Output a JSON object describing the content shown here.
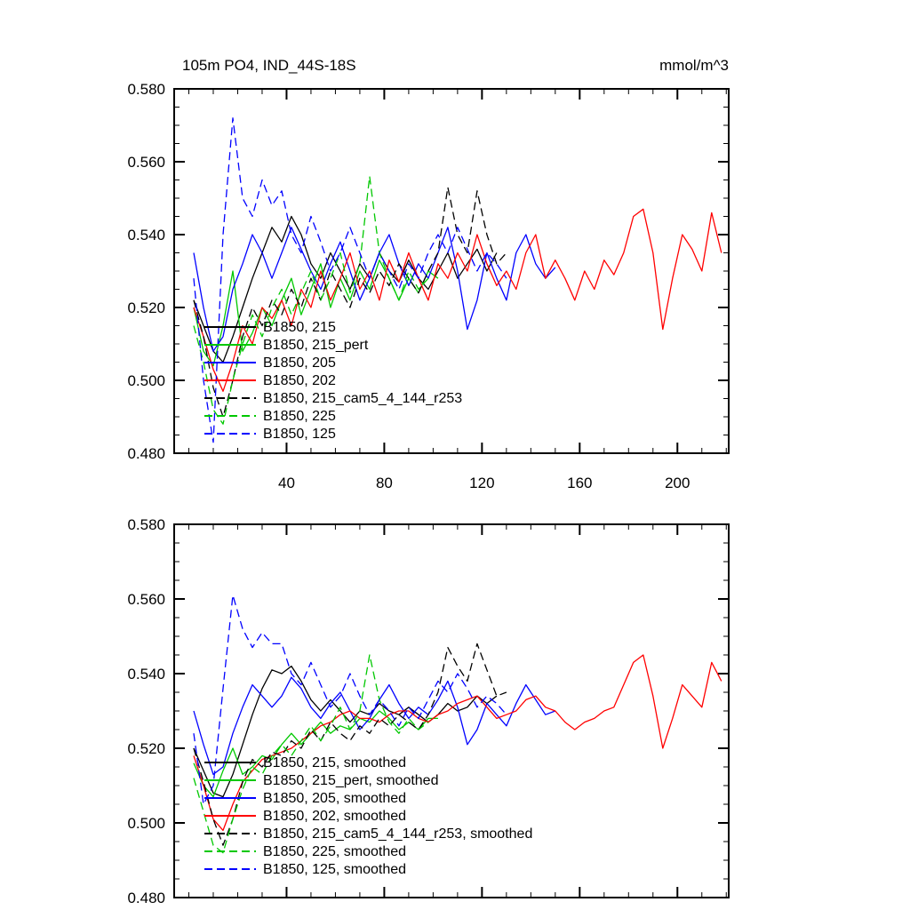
{
  "colors": {
    "background": "#ffffff",
    "axis": "#000000"
  },
  "chart_data": [
    {
      "type": "line",
      "title": "105m PO4, IND_44S-18S",
      "units_label": "mmol/m^3",
      "xlabel": "",
      "ylabel": "",
      "xlim": [
        -6,
        221
      ],
      "ylim": [
        0.48,
        0.58
      ],
      "xticks_major": [
        40,
        80,
        120,
        160,
        200
      ],
      "xtick_major_step": 40,
      "xtick_minor_step": 10,
      "yticks_major": [
        0.48,
        0.5,
        0.52,
        0.54,
        0.56,
        0.58
      ],
      "ytick_major_step": 0.02,
      "ytick_minor_step": 0.005,
      "show_x_tick_labels": true,
      "grid": false,
      "legend_position": "inside-lower-left",
      "series": [
        {
          "name": "B1850, 215",
          "color": "#000000",
          "dash": false,
          "x0": 2,
          "dx": 4,
          "values": [
            0.522,
            0.515,
            0.508,
            0.505,
            0.512,
            0.52,
            0.528,
            0.535,
            0.542,
            0.538,
            0.545,
            0.54,
            0.532,
            0.528,
            0.535,
            0.53,
            0.525,
            0.532,
            0.528,
            0.535,
            0.53,
            0.527,
            0.533,
            0.528,
            0.525,
            0.53,
            0.535,
            0.528,
            0.532,
            0.536,
            0.53,
            0.535
          ]
        },
        {
          "name": "B1850, 215_pert",
          "color": "#00c800",
          "dash": false,
          "x0": 2,
          "dx": 4,
          "values": [
            0.52,
            0.508,
            0.504,
            0.515,
            0.53,
            0.508,
            0.513,
            0.52,
            0.515,
            0.522,
            0.528,
            0.518,
            0.525,
            0.532,
            0.52,
            0.528,
            0.522,
            0.53,
            0.525,
            0.533,
            0.528,
            0.522,
            0.528,
            0.524,
            0.53,
            0.528
          ]
        },
        {
          "name": "B1850, 205",
          "color": "#0000ff",
          "dash": false,
          "x0": 2,
          "dx": 4,
          "values": [
            0.535,
            0.52,
            0.508,
            0.512,
            0.525,
            0.532,
            0.54,
            0.535,
            0.528,
            0.535,
            0.542,
            0.536,
            0.53,
            0.525,
            0.532,
            0.538,
            0.53,
            0.522,
            0.528,
            0.535,
            0.54,
            0.532,
            0.526,
            0.532,
            0.528,
            0.535,
            0.542,
            0.53,
            0.514,
            0.522,
            0.535,
            0.528,
            0.522,
            0.535,
            0.54,
            0.532,
            0.528,
            0.531
          ]
        },
        {
          "name": "B1850, 202",
          "color": "#ff0000",
          "dash": false,
          "x0": 2,
          "dx": 4,
          "values": [
            0.52,
            0.512,
            0.503,
            0.497,
            0.505,
            0.515,
            0.51,
            0.52,
            0.517,
            0.522,
            0.515,
            0.525,
            0.52,
            0.53,
            0.522,
            0.528,
            0.535,
            0.525,
            0.53,
            0.522,
            0.533,
            0.527,
            0.535,
            0.528,
            0.522,
            0.532,
            0.528,
            0.535,
            0.53,
            0.54,
            0.532,
            0.526,
            0.53,
            0.525,
            0.535,
            0.54,
            0.528,
            0.533,
            0.528,
            0.522,
            0.53,
            0.525,
            0.533,
            0.529,
            0.535,
            0.545,
            0.547,
            0.535,
            0.514,
            0.528,
            0.54,
            0.536,
            0.53,
            0.546,
            0.535
          ]
        },
        {
          "name": "B1850, 215_cam5_4_144_r253",
          "color": "#000000",
          "dash": true,
          "x0": 2,
          "dx": 4,
          "values": [
            0.522,
            0.512,
            0.498,
            0.49,
            0.5,
            0.512,
            0.52,
            0.515,
            0.522,
            0.518,
            0.525,
            0.52,
            0.528,
            0.522,
            0.53,
            0.525,
            0.52,
            0.528,
            0.524,
            0.53,
            0.526,
            0.532,
            0.528,
            0.524,
            0.53,
            0.535,
            0.553,
            0.54,
            0.535,
            0.552,
            0.54,
            0.532,
            0.535
          ]
        },
        {
          "name": "B1850, 225",
          "color": "#00c800",
          "dash": true,
          "x0": 2,
          "dx": 4,
          "values": [
            0.515,
            0.505,
            0.492,
            0.488,
            0.5,
            0.51,
            0.518,
            0.512,
            0.52,
            0.525,
            0.518,
            0.524,
            0.53,
            0.522,
            0.528,
            0.535,
            0.524,
            0.532,
            0.556,
            0.535,
            0.528,
            0.522,
            0.53,
            0.525,
            0.528
          ]
        },
        {
          "name": "B1850, 125",
          "color": "#0000ff",
          "dash": true,
          "x0": 2,
          "dx": 4,
          "values": [
            0.528,
            0.5,
            0.483,
            0.54,
            0.572,
            0.55,
            0.545,
            0.555,
            0.548,
            0.552,
            0.54,
            0.535,
            0.545,
            0.538,
            0.53,
            0.535,
            0.542,
            0.535,
            0.528,
            0.535,
            0.53,
            0.525,
            0.532,
            0.528,
            0.535,
            0.54,
            0.535,
            0.542,
            0.536,
            0.53,
            0.535,
            0.532,
            0.528
          ]
        }
      ]
    },
    {
      "type": "line",
      "title": "",
      "units_label": "",
      "xlabel": "",
      "ylabel": "",
      "xlim": [
        -6,
        221
      ],
      "ylim": [
        0.48,
        0.58
      ],
      "xticks_major": [
        40,
        80,
        120,
        160,
        200
      ],
      "xtick_major_step": 40,
      "xtick_minor_step": 10,
      "yticks_major": [
        0.48,
        0.5,
        0.52,
        0.54,
        0.56,
        0.58
      ],
      "ytick_major_step": 0.02,
      "ytick_minor_step": 0.005,
      "show_x_tick_labels": false,
      "grid": false,
      "legend_position": "inside-lower-left",
      "series": [
        {
          "name": "B1850, 215, smoothed",
          "color": "#000000",
          "dash": false,
          "x0": 2,
          "dx": 4,
          "values": [
            0.52,
            0.514,
            0.508,
            0.507,
            0.513,
            0.521,
            0.529,
            0.536,
            0.541,
            0.54,
            0.542,
            0.538,
            0.533,
            0.53,
            0.533,
            0.53,
            0.527,
            0.53,
            0.529,
            0.532,
            0.53,
            0.529,
            0.531,
            0.529,
            0.527,
            0.529,
            0.532,
            0.53,
            0.531,
            0.534,
            0.532,
            0.534
          ]
        },
        {
          "name": "B1850, 215_pert, smoothed",
          "color": "#00c800",
          "dash": false,
          "x0": 2,
          "dx": 4,
          "values": [
            0.516,
            0.51,
            0.507,
            0.514,
            0.52,
            0.513,
            0.515,
            0.518,
            0.517,
            0.521,
            0.524,
            0.521,
            0.524,
            0.527,
            0.524,
            0.526,
            0.525,
            0.528,
            0.527,
            0.53,
            0.528,
            0.525,
            0.527,
            0.525,
            0.528,
            0.528
          ]
        },
        {
          "name": "B1850, 205, smoothed",
          "color": "#0000ff",
          "dash": false,
          "x0": 2,
          "dx": 4,
          "values": [
            0.53,
            0.521,
            0.513,
            0.515,
            0.524,
            0.531,
            0.537,
            0.534,
            0.531,
            0.534,
            0.539,
            0.536,
            0.531,
            0.528,
            0.532,
            0.535,
            0.53,
            0.525,
            0.528,
            0.533,
            0.537,
            0.532,
            0.528,
            0.531,
            0.529,
            0.533,
            0.538,
            0.531,
            0.521,
            0.525,
            0.532,
            0.529,
            0.526,
            0.532,
            0.537,
            0.533,
            0.529,
            0.53
          ]
        },
        {
          "name": "B1850, 202, smoothed",
          "color": "#ff0000",
          "dash": false,
          "x0": 2,
          "dx": 4,
          "values": [
            0.518,
            0.51,
            0.501,
            0.498,
            0.505,
            0.511,
            0.514,
            0.517,
            0.518,
            0.519,
            0.52,
            0.522,
            0.524,
            0.526,
            0.527,
            0.529,
            0.53,
            0.528,
            0.528,
            0.527,
            0.529,
            0.53,
            0.53,
            0.528,
            0.527,
            0.529,
            0.53,
            0.532,
            0.533,
            0.534,
            0.531,
            0.528,
            0.529,
            0.53,
            0.533,
            0.534,
            0.531,
            0.53,
            0.527,
            0.525,
            0.527,
            0.528,
            0.53,
            0.531,
            0.537,
            0.543,
            0.545,
            0.534,
            0.52,
            0.528,
            0.537,
            0.534,
            0.531,
            0.543,
            0.538
          ]
        },
        {
          "name": "B1850, 215_cam5_4_144_r253, smoothed",
          "color": "#000000",
          "dash": true,
          "x0": 2,
          "dx": 4,
          "values": [
            0.52,
            0.511,
            0.501,
            0.494,
            0.501,
            0.511,
            0.517,
            0.515,
            0.519,
            0.518,
            0.522,
            0.52,
            0.525,
            0.522,
            0.527,
            0.524,
            0.522,
            0.526,
            0.524,
            0.528,
            0.526,
            0.529,
            0.527,
            0.525,
            0.529,
            0.535,
            0.547,
            0.542,
            0.538,
            0.548,
            0.541,
            0.534,
            0.535
          ]
        },
        {
          "name": "B1850, 225, smoothed",
          "color": "#00c800",
          "dash": true,
          "x0": 2,
          "dx": 4,
          "values": [
            0.512,
            0.503,
            0.494,
            0.492,
            0.501,
            0.509,
            0.515,
            0.513,
            0.518,
            0.521,
            0.518,
            0.522,
            0.526,
            0.522,
            0.526,
            0.531,
            0.525,
            0.53,
            0.545,
            0.533,
            0.527,
            0.524,
            0.528,
            0.525,
            0.527
          ]
        },
        {
          "name": "B1850, 125, smoothed",
          "color": "#0000ff",
          "dash": true,
          "x0": 2,
          "dx": 4,
          "values": [
            0.524,
            0.505,
            0.51,
            0.536,
            0.561,
            0.552,
            0.547,
            0.551,
            0.548,
            0.548,
            0.54,
            0.537,
            0.543,
            0.537,
            0.531,
            0.534,
            0.54,
            0.534,
            0.529,
            0.533,
            0.53,
            0.526,
            0.531,
            0.528,
            0.533,
            0.538,
            0.535,
            0.54,
            0.536,
            0.531,
            0.534,
            0.532,
            0.529
          ]
        }
      ]
    }
  ]
}
